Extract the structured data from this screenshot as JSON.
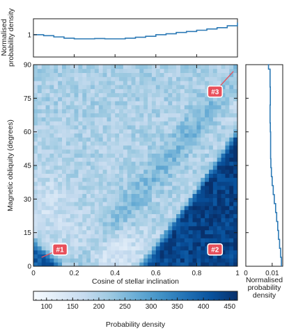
{
  "chart_data": [
    {
      "type": "heatmap",
      "xlabel": "Cosine of stellar inclination",
      "ylabel": "Magnetic obliquity (degrees)",
      "xlim": [
        0,
        1
      ],
      "ylim": [
        0,
        90
      ],
      "x_ticks": [
        "0",
        "0.2",
        "0.4",
        "0.6",
        "0.8",
        "1"
      ],
      "y_ticks": [
        "0",
        "15",
        "30",
        "45",
        "60",
        "75",
        "90"
      ],
      "grid_size": [
        50,
        50
      ],
      "colorbar": {
        "label": "Probability density",
        "range": [
          75,
          465
        ],
        "ticks": [
          "100",
          "150",
          "200",
          "250",
          "300",
          "350",
          "400",
          "450"
        ],
        "colors": [
          "#f7fbff",
          "#deebf7",
          "#c6dbef",
          "#9ecae1",
          "#6baed6",
          "#4292c6",
          "#2171b5",
          "#08519c",
          "#08306b"
        ]
      },
      "annotations": [
        {
          "label": "#1",
          "x": 0.13,
          "y": 7.5,
          "points_to": [
            0.04,
            4
          ]
        },
        {
          "label": "#2",
          "x": 0.89,
          "y": 7.5
        },
        {
          "label": "#3",
          "x": 0.89,
          "y": 78,
          "points_to": [
            0.98,
            87
          ]
        }
      ]
    },
    {
      "type": "line",
      "ylabel": "Normalised probability density",
      "xlim": [
        0,
        1
      ],
      "ylim": [
        0.3,
        1.5
      ],
      "y_ticks": [
        "1"
      ],
      "x": [
        0,
        0.05,
        0.1,
        0.15,
        0.2,
        0.25,
        0.3,
        0.35,
        0.4,
        0.45,
        0.5,
        0.55,
        0.6,
        0.65,
        0.7,
        0.75,
        0.8,
        0.85,
        0.9,
        0.95,
        1.0
      ],
      "values": [
        1.0,
        0.97,
        0.93,
        0.89,
        0.87,
        0.87,
        0.88,
        0.87,
        0.87,
        0.89,
        0.92,
        0.95,
        1.0,
        1.03,
        1.07,
        1.1,
        1.14,
        1.18,
        1.22,
        1.28,
        1.38
      ]
    },
    {
      "type": "line",
      "xlabel": "Normalised probability density",
      "xlim": [
        0,
        0.014
      ],
      "ylim": [
        0,
        90
      ],
      "x_ticks": [
        "0",
        "0.01"
      ],
      "y": [
        0,
        4,
        8,
        12,
        16,
        20,
        24,
        28,
        32,
        36,
        40,
        44,
        48,
        52,
        56,
        60,
        64,
        68,
        72,
        76,
        80,
        84,
        88,
        90
      ],
      "values": [
        0.0135,
        0.0132,
        0.0128,
        0.0124,
        0.0121,
        0.0117,
        0.0113,
        0.0108,
        0.0104,
        0.01,
        0.0097,
        0.0095,
        0.0094,
        0.0094,
        0.0094,
        0.0093,
        0.0092,
        0.0092,
        0.0093,
        0.0093,
        0.0092,
        0.0092,
        0.0086,
        0.0084
      ]
    }
  ]
}
